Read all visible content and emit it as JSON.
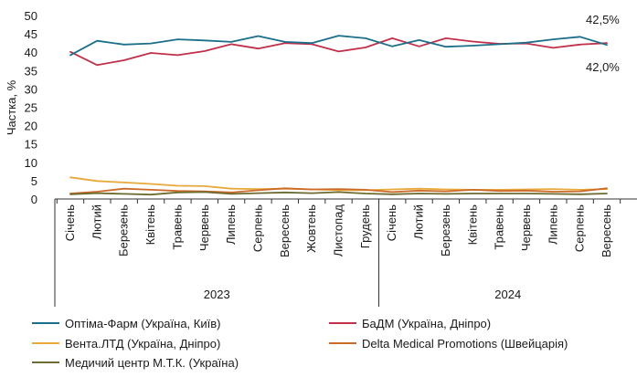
{
  "chart_data": {
    "type": "line",
    "ylabel": "Частка, %",
    "ylim": [
      0,
      50
    ],
    "yticks": [
      0,
      5,
      10,
      15,
      20,
      25,
      30,
      35,
      40,
      45,
      50
    ],
    "categories": [
      "Січень",
      "Лютий",
      "Березень",
      "Квітень",
      "Травень",
      "Червень",
      "Липень",
      "Серпень",
      "Вересень",
      "Жовтень",
      "Листопад",
      "Грудень",
      "Січень",
      "Лютий",
      "Березень",
      "Квітень",
      "Травень",
      "Червень",
      "Липень",
      "Серпень",
      "Вересень"
    ],
    "years": [
      {
        "label": "2023",
        "count": 12
      },
      {
        "label": "2024",
        "count": 9
      }
    ],
    "series": [
      {
        "name": "Оптіма-Фарм (Україна, Київ)",
        "color": "#1b6f8a",
        "values": [
          39.2,
          43.1,
          42.1,
          42.4,
          43.5,
          43.2,
          42.8,
          44.4,
          42.8,
          42.5,
          44.5,
          43.8,
          41.6,
          43.3,
          41.5,
          41.8,
          42.2,
          42.6,
          43.5,
          44.2,
          42.0
        ]
      },
      {
        "name": "БаДМ (Україна, Дніпро)",
        "color": "#c0304a",
        "values": [
          40.1,
          36.5,
          37.8,
          39.8,
          39.2,
          40.3,
          42.2,
          41.0,
          42.5,
          42.2,
          40.2,
          41.3,
          43.8,
          41.6,
          43.8,
          42.9,
          42.3,
          42.4,
          41.2,
          42.1,
          42.5
        ]
      },
      {
        "name": "Вента.ЛТД (Україна, Дніпро)",
        "color": "#e8a93a",
        "values": [
          5.9,
          4.9,
          4.5,
          4.1,
          3.6,
          3.5,
          2.8,
          2.7,
          2.8,
          2.6,
          2.4,
          2.4,
          2.6,
          2.8,
          2.6,
          2.5,
          2.5,
          2.6,
          2.7,
          2.5,
          2.7
        ]
      },
      {
        "name": "Delta Medical Promotions (Швейцарія)",
        "color": "#cc6a2a",
        "values": [
          1.5,
          2.0,
          2.8,
          2.5,
          2.2,
          2.1,
          1.8,
          2.4,
          2.9,
          2.6,
          2.7,
          2.5,
          1.9,
          2.3,
          2.1,
          2.5,
          2.2,
          2.3,
          2.0,
          2.1,
          2.9
        ]
      },
      {
        "name": "Медичий центр М.Т.К. (Україна)",
        "color": "#6b6b32",
        "values": [
          1.3,
          1.6,
          1.4,
          1.2,
          1.8,
          1.9,
          1.4,
          1.6,
          1.8,
          1.6,
          1.9,
          1.5,
          1.3,
          1.5,
          1.4,
          1.5,
          1.5,
          1.5,
          1.4,
          1.3,
          1.5
        ]
      }
    ],
    "annotations": [
      {
        "text": "42,5%",
        "series": 1,
        "index": 20
      },
      {
        "text": "42,0%",
        "series": 0,
        "index": 20
      }
    ],
    "legend_position": "bottom"
  }
}
